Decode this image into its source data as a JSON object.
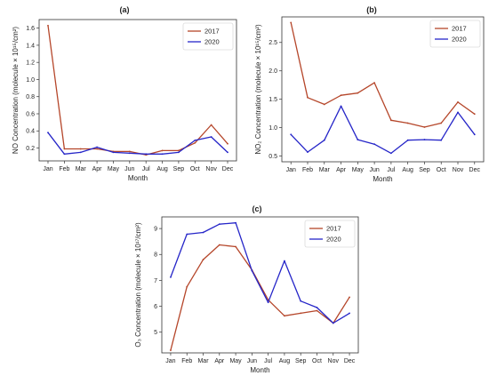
{
  "chart_data": [
    {
      "type": "line",
      "panel": "(a)",
      "x": [
        "Jan",
        "Feb",
        "Mar",
        "Apr",
        "May",
        "Jun",
        "Jul",
        "Aug",
        "Sep",
        "Oct",
        "Nov",
        "Dec"
      ],
      "xlabel": "Month",
      "ylabel": "NO Concentration (molecule × 10¹⁵/cm²)",
      "ylim": [
        0.05,
        1.7
      ],
      "yticks": [
        0.2,
        0.4,
        0.6,
        0.8,
        1.0,
        1.2,
        1.4,
        1.6
      ],
      "ytick_labels": [
        "0.2",
        "0.4",
        "0.6",
        "0.8",
        "1.0",
        "1.2",
        "1.4",
        "1.6"
      ],
      "legend": "top-right",
      "series": [
        {
          "name": "2017",
          "color": "#b5462a",
          "values": [
            1.63,
            0.19,
            0.19,
            0.19,
            0.16,
            0.16,
            0.12,
            0.17,
            0.17,
            0.26,
            0.47,
            0.25
          ]
        },
        {
          "name": "2020",
          "color": "#2525c8",
          "values": [
            0.38,
            0.13,
            0.15,
            0.21,
            0.15,
            0.14,
            0.13,
            0.13,
            0.15,
            0.29,
            0.33,
            0.15
          ]
        }
      ]
    },
    {
      "type": "line",
      "panel": "(b)",
      "x": [
        "Jan",
        "Feb",
        "Mar",
        "Apr",
        "May",
        "Jun",
        "Jul",
        "Aug",
        "Sep",
        "Oct",
        "Nov",
        "Dec"
      ],
      "xlabel": "Month",
      "ylabel": "NO₂ Concentration (molecule × 10¹⁵/cm²)",
      "ylim": [
        0.4,
        2.95
      ],
      "yticks": [
        0.5,
        1.0,
        1.5,
        2.0,
        2.5
      ],
      "ytick_labels": [
        "0.5",
        "1.0",
        "1.5",
        "2.0",
        "2.5"
      ],
      "legend": "top-right",
      "series": [
        {
          "name": "2017",
          "color": "#b5462a",
          "values": [
            2.85,
            1.53,
            1.41,
            1.57,
            1.61,
            1.79,
            1.13,
            1.08,
            1.01,
            1.08,
            1.45,
            1.24
          ]
        },
        {
          "name": "2020",
          "color": "#2525c8",
          "values": [
            0.88,
            0.57,
            0.78,
            1.38,
            0.79,
            0.71,
            0.55,
            0.78,
            0.79,
            0.78,
            1.27,
            0.88
          ]
        }
      ]
    },
    {
      "type": "line",
      "panel": "(c)",
      "x": [
        "Jan",
        "Feb",
        "Mar",
        "Apr",
        "May",
        "Jun",
        "Jul",
        "Aug",
        "Sep",
        "Oct",
        "Nov",
        "Dec"
      ],
      "xlabel": "Month",
      "ylabel": "O₃ Concentration (molecule × 10¹⁷/cm²)",
      "ylim": [
        4.2,
        9.45
      ],
      "yticks": [
        5,
        6,
        7,
        8,
        9
      ],
      "ytick_labels": [
        "5",
        "6",
        "7",
        "8",
        "9"
      ],
      "legend": "top-right",
      "series": [
        {
          "name": "2017",
          "color": "#b5462a",
          "values": [
            4.3,
            6.75,
            7.8,
            8.37,
            8.3,
            7.4,
            6.25,
            5.63,
            5.73,
            5.83,
            5.35,
            6.35
          ]
        },
        {
          "name": "2020",
          "color": "#2525c8",
          "values": [
            7.12,
            8.78,
            8.85,
            9.17,
            9.22,
            7.37,
            6.15,
            7.75,
            6.2,
            5.95,
            5.35,
            5.73
          ]
        }
      ]
    }
  ]
}
